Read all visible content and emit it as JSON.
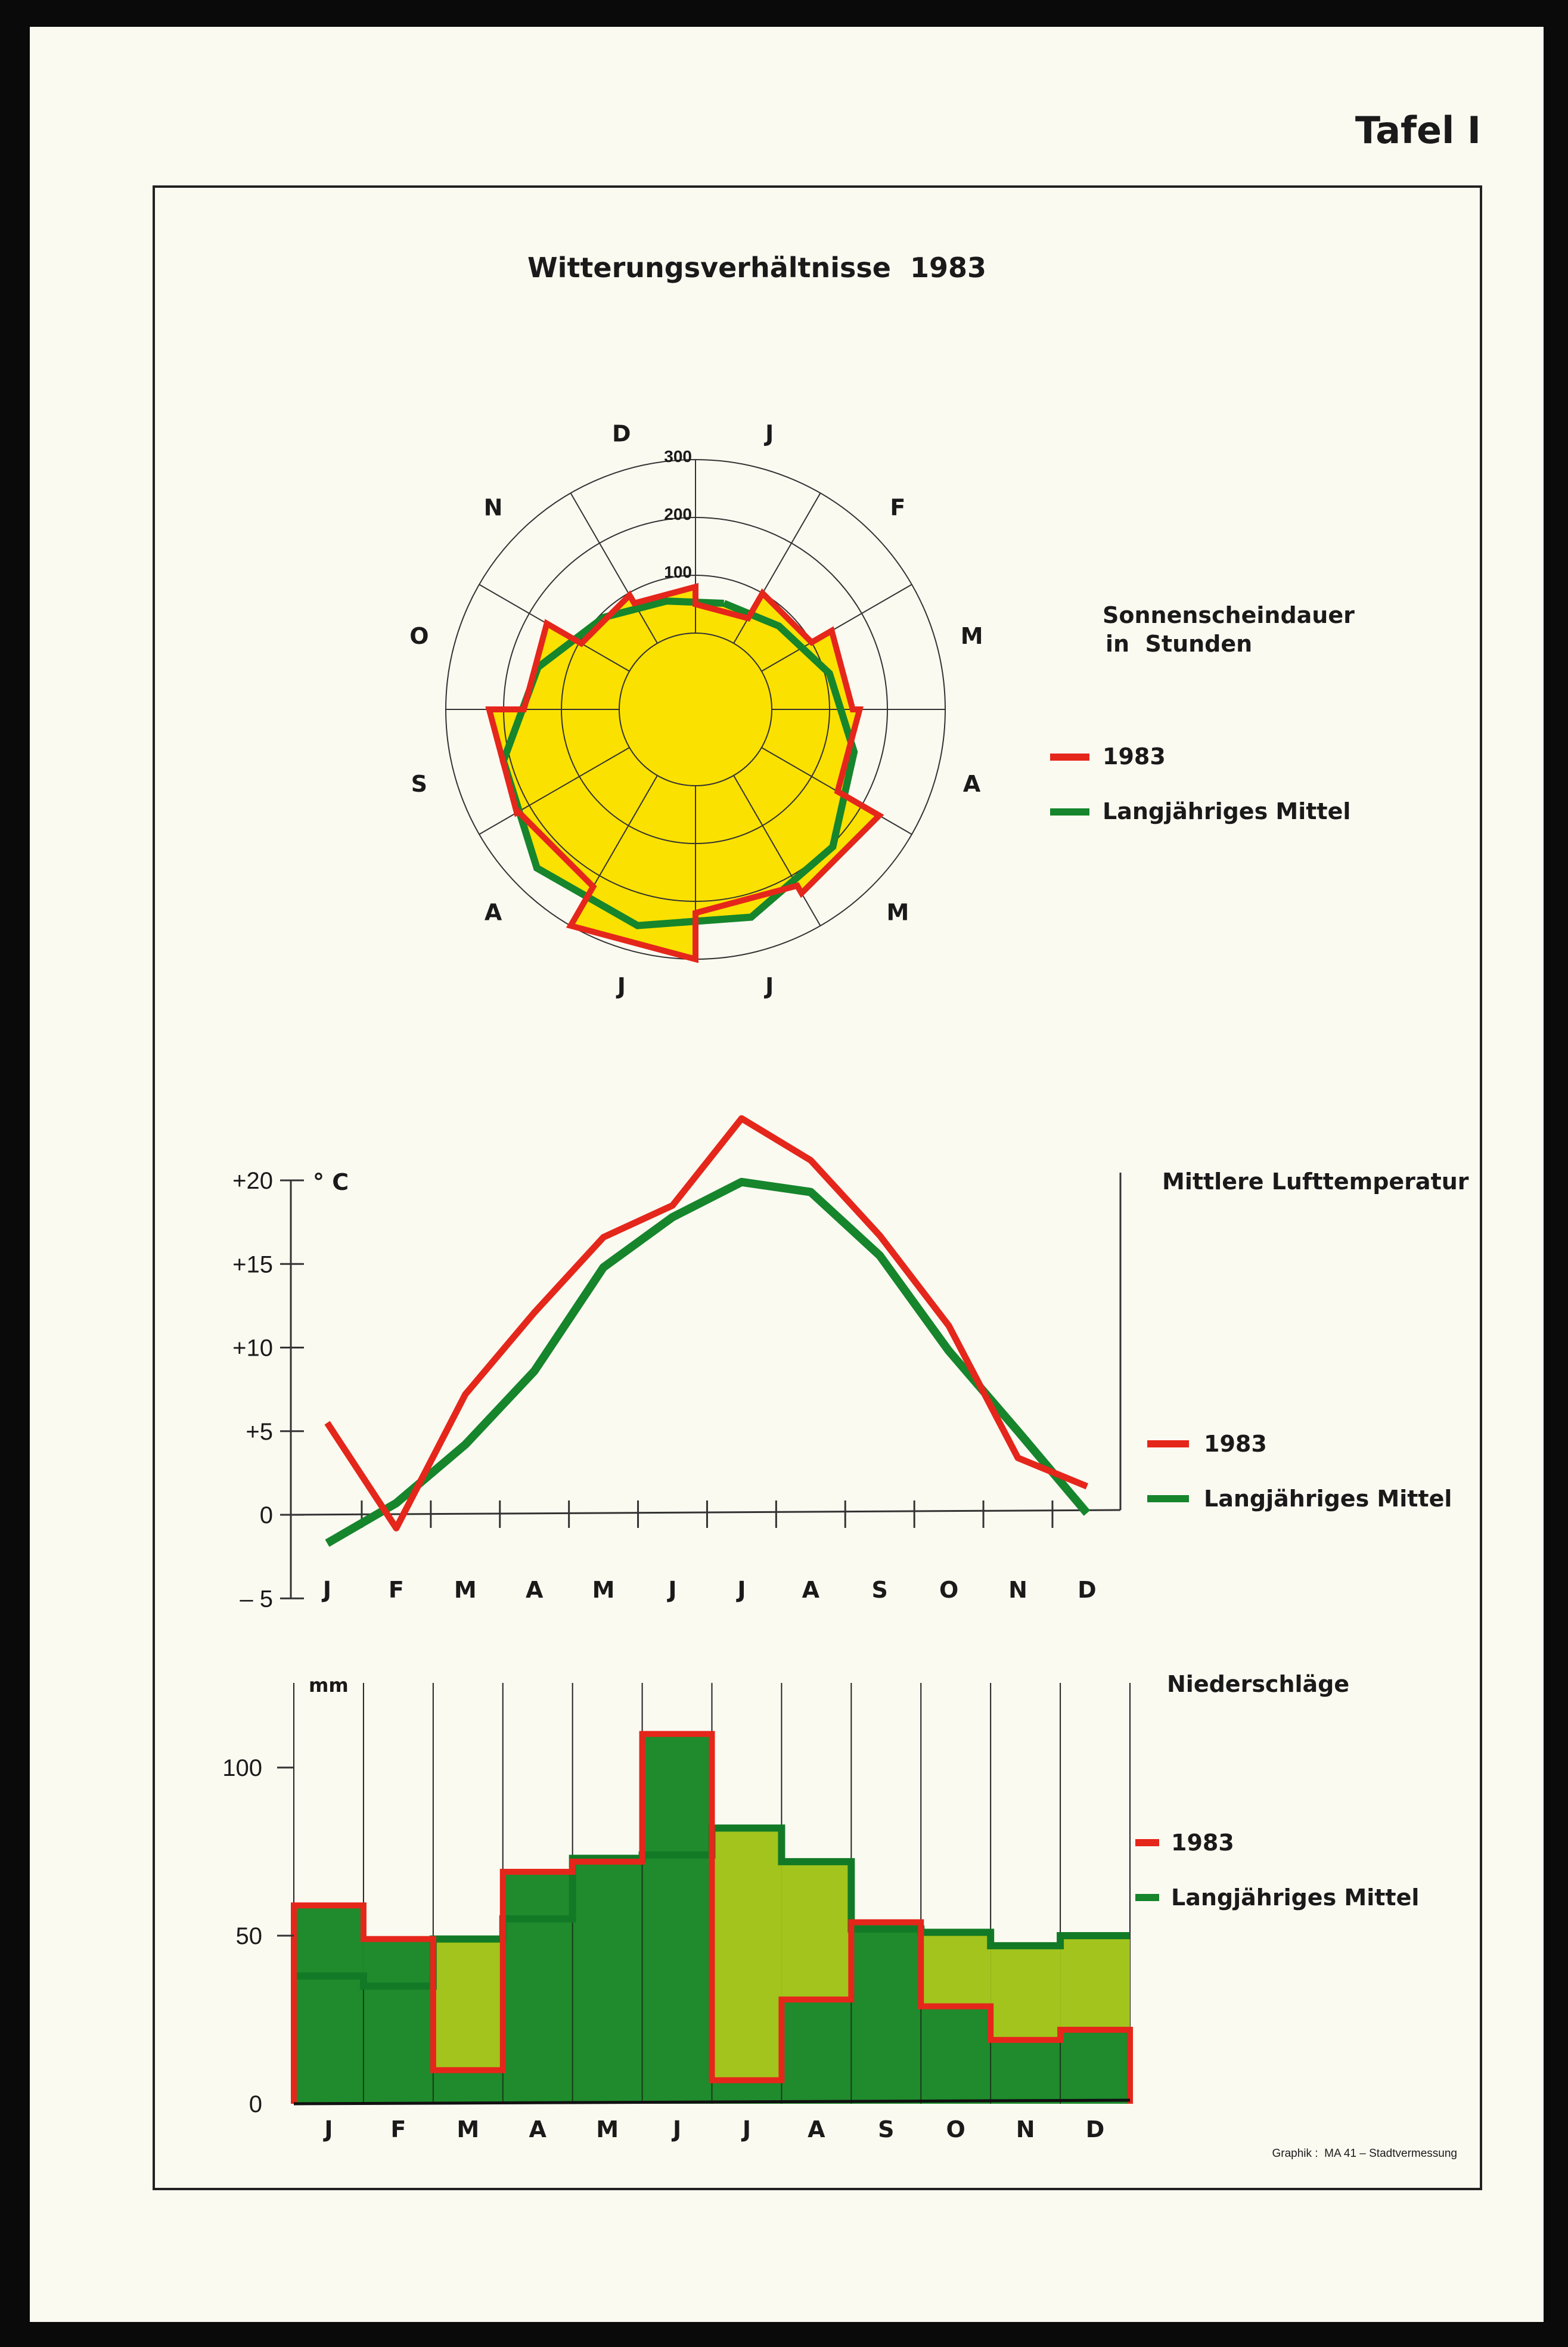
{
  "plate_label": "Tafel I",
  "title": "Witterungsverhältnisse  1983",
  "credit": "Graphik :  MA 41 – Stadtvermessung",
  "colors": {
    "red": "#e5261b",
    "green": "#16852c",
    "yellow": "#fbe100",
    "light_green": "#a3c41c",
    "dark_green": "#1f8b2c"
  },
  "chart_data": [
    {
      "type": "radar",
      "title": "Sonnenscheindauer",
      "subtitle": "in  Stunden",
      "categories": [
        "J",
        "F",
        "M",
        "A",
        "M",
        "J",
        "J",
        "A",
        "S",
        "O",
        "N",
        "D"
      ],
      "radial_ticks": [
        "100",
        "200",
        "300"
      ],
      "rlim": [
        0,
        300
      ],
      "series": [
        {
          "name": "1983",
          "values": [
            50,
            100,
            140,
            152,
            235,
            220,
            300,
            222,
            225,
            165,
            96,
            80
          ]
        },
        {
          "name": "Langjähriges Mittel",
          "values": [
            58,
            72,
            108,
            152,
            204,
            240,
            255,
            256,
            212,
            150,
            93,
            62
          ]
        }
      ]
    },
    {
      "type": "line",
      "title": "Mittlere Lufttemperatur",
      "ylabel": "° C",
      "categories": [
        "J",
        "F",
        "M",
        "A",
        "M",
        "J",
        "J",
        "A",
        "S",
        "O",
        "N",
        "D"
      ],
      "yticks": [
        "+20",
        "+15",
        "+10",
        "+5",
        "0",
        "– 5"
      ],
      "ylim": [
        -5,
        20
      ],
      "series": [
        {
          "name": "1983",
          "values": [
            5.5,
            -0.8,
            7.2,
            12.1,
            16.6,
            18.5,
            23.7,
            21.2,
            16.7,
            11.3,
            3.4,
            1.7
          ]
        },
        {
          "name": "Langjähriges Mittel",
          "values": [
            -1.7,
            0.7,
            4.2,
            8.6,
            14.8,
            17.8,
            19.9,
            19.3,
            15.5,
            9.8,
            5.0,
            0.1
          ]
        }
      ]
    },
    {
      "type": "bar",
      "title": "Niederschläge",
      "ylabel": "mm",
      "categories": [
        "J",
        "F",
        "M",
        "A",
        "M",
        "J",
        "J",
        "A",
        "S",
        "O",
        "N",
        "D"
      ],
      "yticks": [
        "100",
        "50",
        "0"
      ],
      "ylim": [
        0,
        120
      ],
      "series": [
        {
          "name": "1983",
          "values": [
            59,
            49,
            10,
            69,
            72,
            110,
            7,
            31,
            54,
            29,
            19,
            22
          ]
        },
        {
          "name": "Langjähriges Mittel",
          "values": [
            38,
            35,
            49,
            55,
            73,
            74,
            82,
            72,
            52,
            51,
            47,
            50
          ]
        }
      ]
    }
  ]
}
